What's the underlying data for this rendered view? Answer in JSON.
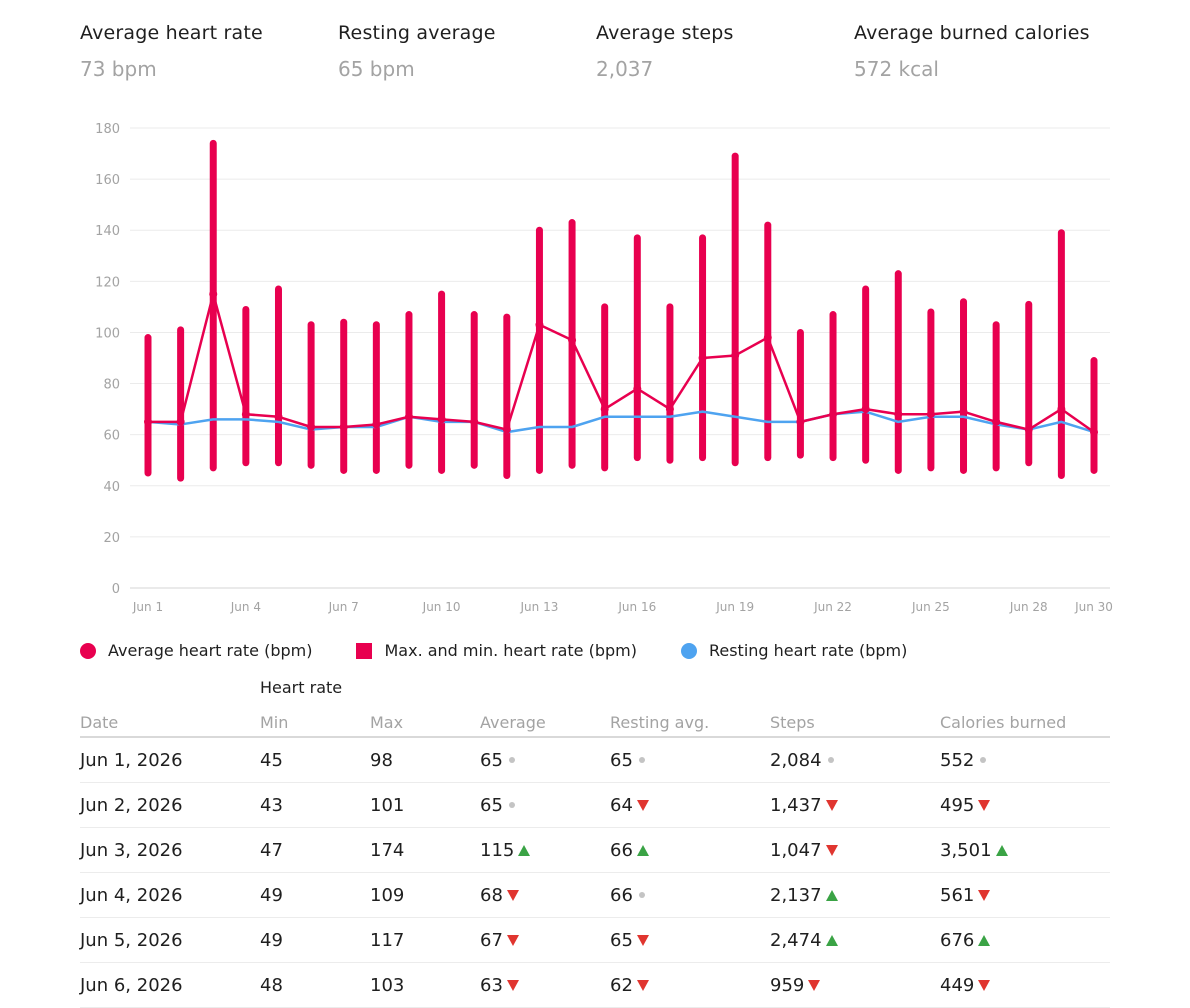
{
  "summary": [
    {
      "label": "Average heart rate",
      "value": "73 bpm"
    },
    {
      "label": "Resting average",
      "value": "65 bpm"
    },
    {
      "label": "Average steps",
      "value": "2,037"
    },
    {
      "label": "Average burned calories",
      "value": "572 kcal"
    }
  ],
  "chart_data": {
    "type": "line",
    "title": "",
    "xlabel": "",
    "ylabel": "",
    "ylim": [
      0,
      180
    ],
    "yticks": [
      0,
      20,
      40,
      60,
      80,
      100,
      120,
      140,
      160,
      180
    ],
    "x_tick_labels": [
      "Jun 1",
      "Jun 4",
      "Jun 7",
      "Jun 10",
      "Jun 13",
      "Jun 16",
      "Jun 19",
      "Jun 22",
      "Jun 25",
      "Jun 28",
      "Jun 30"
    ],
    "x_tick_days": [
      1,
      4,
      7,
      10,
      13,
      16,
      19,
      22,
      25,
      28,
      30
    ],
    "grid": true,
    "legend_position": "bottom",
    "days": [
      1,
      2,
      3,
      4,
      5,
      6,
      7,
      8,
      9,
      10,
      11,
      12,
      13,
      14,
      15,
      16,
      17,
      18,
      19,
      20,
      21,
      22,
      23,
      24,
      25,
      26,
      27,
      28,
      29,
      30
    ],
    "series": [
      {
        "name": "Average heart rate (bpm)",
        "kind": "line",
        "color": "#e8004f",
        "values": [
          65,
          65,
          115,
          68,
          67,
          63,
          63,
          64,
          67,
          66,
          65,
          62,
          103,
          97,
          70,
          78,
          70,
          90,
          91,
          98,
          65,
          68,
          70,
          68,
          68,
          69,
          65,
          62,
          70,
          61
        ]
      },
      {
        "name": "Max. and min. heart rate (bpm)",
        "kind": "range",
        "color": "#e8004f",
        "min": [
          45,
          43,
          47,
          49,
          49,
          48,
          46,
          46,
          48,
          46,
          48,
          44,
          46,
          48,
          47,
          51,
          50,
          51,
          49,
          51,
          52,
          51,
          50,
          46,
          47,
          46,
          47,
          49,
          44,
          46
        ],
        "max": [
          98,
          101,
          174,
          109,
          117,
          103,
          104,
          103,
          107,
          115,
          107,
          106,
          140,
          143,
          110,
          137,
          110,
          137,
          169,
          142,
          100,
          107,
          117,
          123,
          108,
          112,
          103,
          111,
          139,
          89
        ]
      },
      {
        "name": "Resting heart rate (bpm)",
        "kind": "line",
        "color": "#4ea3f0",
        "values": [
          65,
          64,
          66,
          66,
          65,
          62,
          63,
          63,
          67,
          65,
          65,
          61,
          63,
          63,
          67,
          67,
          67,
          69,
          67,
          65,
          65,
          68,
          69,
          65,
          67,
          67,
          64,
          62,
          65,
          61
        ]
      }
    ]
  },
  "table": {
    "group_header": "Heart rate",
    "columns": [
      "Date",
      "Min",
      "Max",
      "Average",
      "Resting avg.",
      "Steps",
      "Calories burned"
    ],
    "rows": [
      {
        "date": "Jun 1, 2026",
        "min": "45",
        "max": "98",
        "avg": "65",
        "avg_trend": "flat",
        "resting": "65",
        "resting_trend": "flat",
        "steps": "2,084",
        "steps_trend": "flat",
        "cal": "552",
        "cal_trend": "flat"
      },
      {
        "date": "Jun 2, 2026",
        "min": "43",
        "max": "101",
        "avg": "65",
        "avg_trend": "flat",
        "resting": "64",
        "resting_trend": "down",
        "steps": "1,437",
        "steps_trend": "down",
        "cal": "495",
        "cal_trend": "down"
      },
      {
        "date": "Jun 3, 2026",
        "min": "47",
        "max": "174",
        "avg": "115",
        "avg_trend": "up",
        "resting": "66",
        "resting_trend": "up",
        "steps": "1,047",
        "steps_trend": "down",
        "cal": "3,501",
        "cal_trend": "up"
      },
      {
        "date": "Jun 4, 2026",
        "min": "49",
        "max": "109",
        "avg": "68",
        "avg_trend": "down",
        "resting": "66",
        "resting_trend": "flat",
        "steps": "2,137",
        "steps_trend": "up",
        "cal": "561",
        "cal_trend": "down"
      },
      {
        "date": "Jun 5, 2026",
        "min": "49",
        "max": "117",
        "avg": "67",
        "avg_trend": "down",
        "resting": "65",
        "resting_trend": "down",
        "steps": "2,474",
        "steps_trend": "up",
        "cal": "676",
        "cal_trend": "up"
      },
      {
        "date": "Jun 6, 2026",
        "min": "48",
        "max": "103",
        "avg": "63",
        "avg_trend": "down",
        "resting": "62",
        "resting_trend": "down",
        "steps": "959",
        "steps_trend": "down",
        "cal": "449",
        "cal_trend": "down"
      }
    ]
  }
}
